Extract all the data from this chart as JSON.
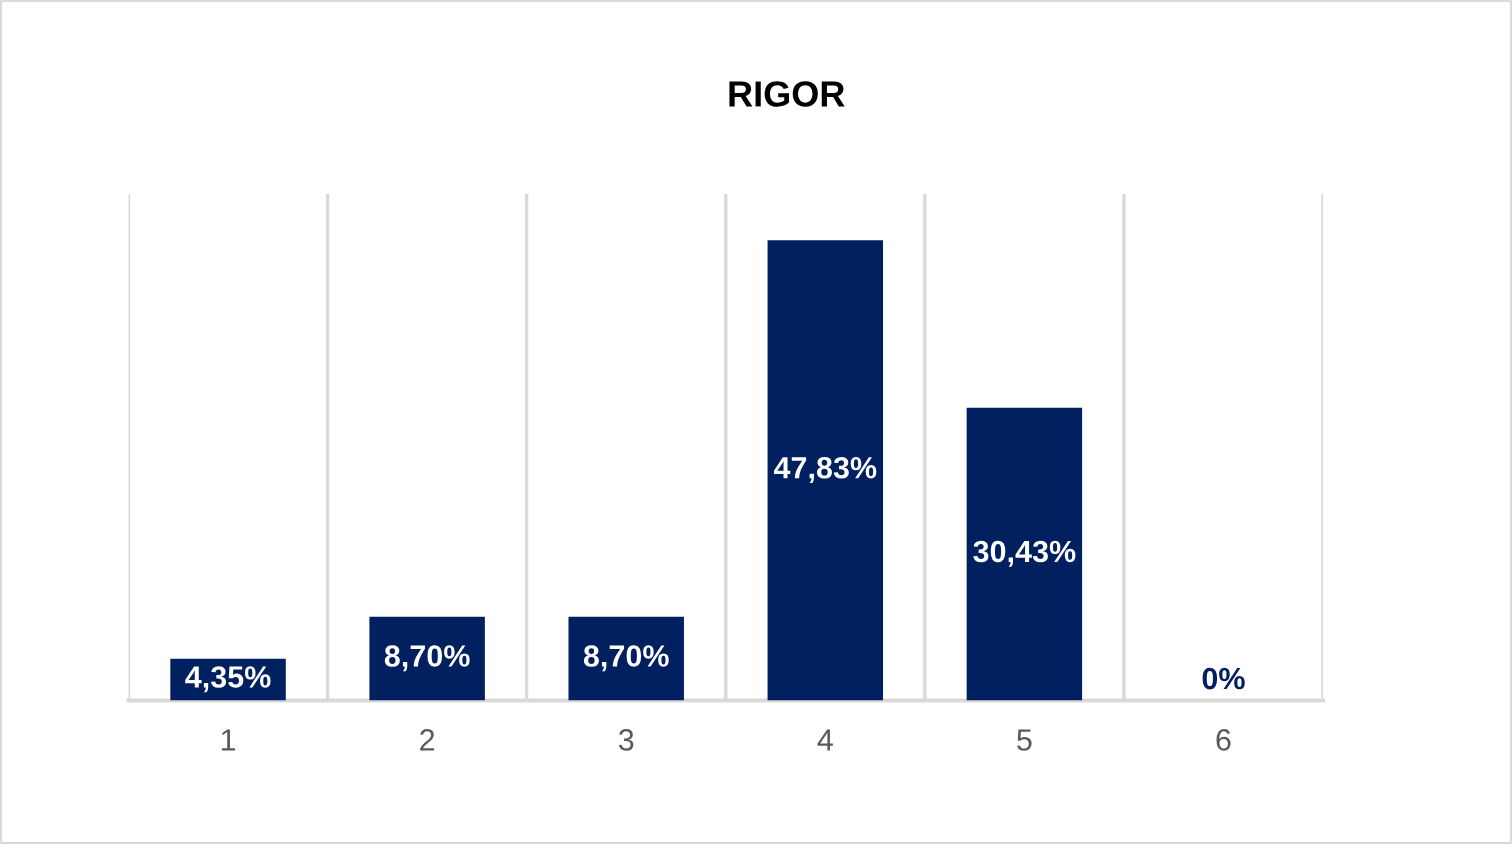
{
  "chart_data": {
    "type": "bar",
    "title": "RIGOR",
    "categories": [
      "1",
      "2",
      "3",
      "4",
      "5",
      "6"
    ],
    "values": [
      4.35,
      8.7,
      8.7,
      47.83,
      30.43,
      0
    ],
    "color": "#002060",
    "value_labels": [
      "4,35%",
      "8,70%",
      "8,70%",
      "47,83%",
      "30,43%",
      "0%"
    ],
    "grid": "x"
  }
}
